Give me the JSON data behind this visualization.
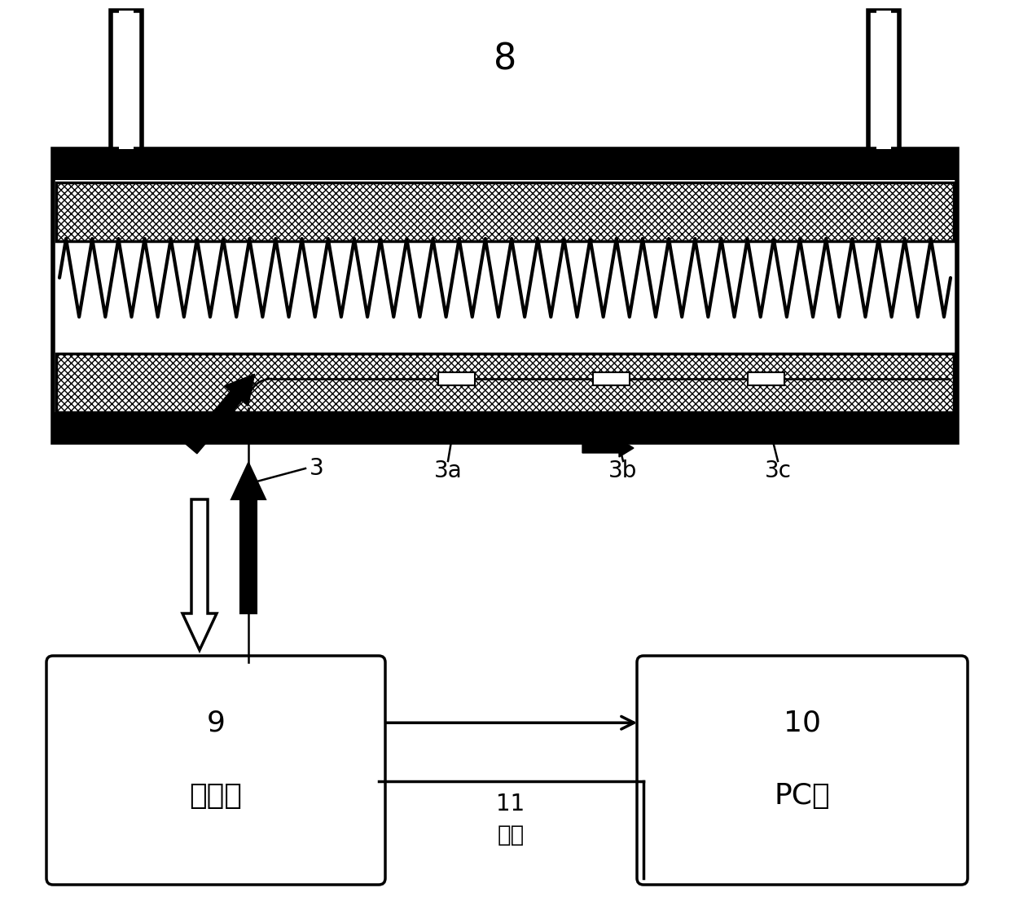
{
  "bg_color": "#ffffff",
  "label_8": "8",
  "label_3": "3",
  "label_3a": "3a",
  "label_3b": "3b",
  "label_3c": "3c",
  "label_9_num": "9",
  "label_9_text": "解调仳",
  "label_10_num": "10",
  "label_10_text": "PC机",
  "label_11_num": "11",
  "label_11_text": "网线",
  "font_size_label": 20,
  "font_size_box": 22,
  "font_size_large": 26
}
